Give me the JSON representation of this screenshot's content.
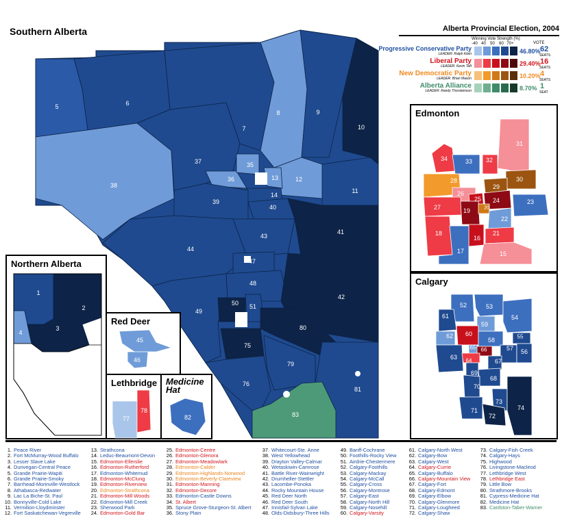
{
  "titles": {
    "southern": "Southern Alberta",
    "northern": "Northern Alberta",
    "edmonton": "Edmonton",
    "calgary": "Calgary",
    "red_deer": "Red Deer",
    "lethbridge": "Lethbridge",
    "medicine_hat": "Medicine Hat"
  },
  "legend": {
    "heading": "Alberta Provincial Election, 2004",
    "strength_label": "Winning Vote Strength (%)",
    "ticks": [
      "-40",
      "40",
      "50",
      "60",
      "70+"
    ],
    "vote_label": "VOTE",
    "parties": [
      {
        "name": "Progressive Conservative Party",
        "leader": "LEADER: Ralph Klein",
        "vote": "46.80%",
        "seats": "62",
        "seats_label": "SEATS",
        "color": "#1f4fa0",
        "shades": [
          "#a9c6ea",
          "#6f9bd8",
          "#3d6fbf",
          "#1f4a8f",
          "#0d2347"
        ]
      },
      {
        "name": "Liberal Party",
        "leader": "LEADER: Kevin Taft",
        "vote": "29.40%",
        "seats": "16",
        "seats_label": "SEATS",
        "color": "#d0151c",
        "shades": [
          "#f58f98",
          "#ee3b45",
          "#c8101d",
          "#8e0a14",
          "#4d0609"
        ]
      },
      {
        "name": "New Democratic Party",
        "leader": "LEADER: Brian Mason",
        "vote": "10.20%",
        "seats": "4",
        "seats_label": "SEATS",
        "color": "#f08a20",
        "shades": [
          "#f7c07a",
          "#f39a2c",
          "#d07918",
          "#9b5510",
          "#5a2f07"
        ]
      },
      {
        "name": "Alberta Alliance",
        "leader": "LEADER: Randy Thorsteinson",
        "vote": "8.70%",
        "seats": "1",
        "seats_label": "SEAT",
        "color": "#3e8c6a",
        "shades": [
          "#a6d2bc",
          "#6fae8e",
          "#3e8c6a",
          "#2a6a4c",
          "#143b29"
        ]
      }
    ]
  },
  "district_numbers": {
    "south": [
      "5",
      "6",
      "8",
      "9",
      "10",
      "37",
      "35",
      "36",
      "13",
      "12",
      "11",
      "38",
      "14",
      "39",
      "40",
      "7",
      "41",
      "43",
      "44",
      "47",
      "48",
      "49",
      "50",
      "51",
      "42",
      "80",
      "75",
      "79",
      "76",
      "81",
      "83"
    ],
    "north": [
      "1",
      "2",
      "3",
      "4"
    ],
    "edmonton": [
      "31",
      "34",
      "33",
      "32",
      "28",
      "29",
      "30",
      "26",
      "25",
      "24",
      "27",
      "19",
      "20",
      "23",
      "22",
      "18",
      "16",
      "21",
      "17",
      "15"
    ],
    "calgary": [
      "52",
      "53",
      "61",
      "59",
      "54",
      "62",
      "60",
      "58",
      "55",
      "65",
      "66",
      "57",
      "56",
      "63",
      "64",
      "67",
      "69",
      "68",
      "70",
      "73",
      "74",
      "71",
      "72"
    ],
    "red_deer": [
      "45",
      "46"
    ],
    "lethbridge": [
      "77",
      "78"
    ],
    "medicine_hat": [
      "82"
    ]
  },
  "districts": {
    "col1": [
      {
        "n": "1.",
        "name": "Peace River",
        "party": "pc"
      },
      {
        "n": "2.",
        "name": "Fort McMurray-Wood Buffalo",
        "party": "pc"
      },
      {
        "n": "3.",
        "name": "Lesser Slave Lake",
        "party": "pc"
      },
      {
        "n": "4.",
        "name": "Dunvegan-Central Peace",
        "party": "pc"
      },
      {
        "n": "5.",
        "name": "Grande Prairie-Wapiti",
        "party": "pc"
      },
      {
        "n": "6.",
        "name": "Grande Prairie-Smoky",
        "party": "pc"
      },
      {
        "n": "7.",
        "name": "Barrhead-Morinville-Westlock",
        "party": "pc"
      },
      {
        "n": "8.",
        "name": "Athabasca-Redwater",
        "party": "pc"
      },
      {
        "n": "9.",
        "name": "Lac La Biche-St. Paul",
        "party": "pc"
      },
      {
        "n": "10.",
        "name": "Bonnyville-Cold Lake",
        "party": "pc"
      },
      {
        "n": "11.",
        "name": "Vermilion-Lloydminster",
        "party": "pc"
      },
      {
        "n": "12.",
        "name": "Fort Saskatchewan-Vegreville",
        "party": "pc"
      }
    ],
    "col2": [
      {
        "n": "13.",
        "name": "Strathcona",
        "party": "pc"
      },
      {
        "n": "14.",
        "name": "Leduc-Beaumont-Devon",
        "party": "pc"
      },
      {
        "n": "15.",
        "name": "Edmonton-Ellerslie",
        "party": "lib"
      },
      {
        "n": "16.",
        "name": "Edmonton-Rutherford",
        "party": "lib"
      },
      {
        "n": "17.",
        "name": "Edmonton-Whitemud",
        "party": "pc"
      },
      {
        "n": "18.",
        "name": "Edmonton-McClung",
        "party": "lib"
      },
      {
        "n": "19.",
        "name": "Edmonton-Riverview",
        "party": "lib"
      },
      {
        "n": "20.",
        "name": "Edmonton-Strathcona",
        "party": "ndp"
      },
      {
        "n": "21.",
        "name": "Edmonton-Mill Woods",
        "party": "lib"
      },
      {
        "n": "22.",
        "name": "Edmonton-Mill Creek",
        "party": "pc"
      },
      {
        "n": "23.",
        "name": "Sherwood Park",
        "party": "pc"
      },
      {
        "n": "24.",
        "name": "Edmonton-Gold Bar",
        "party": "lib"
      }
    ],
    "col3": [
      {
        "n": "25.",
        "name": "Edmonton-Centre",
        "party": "lib"
      },
      {
        "n": "26.",
        "name": "Edmonton-Glenora",
        "party": "lib"
      },
      {
        "n": "27.",
        "name": "Edmonton-Meadowlark",
        "party": "lib"
      },
      {
        "n": "28.",
        "name": "Edmonton-Calder",
        "party": "ndp"
      },
      {
        "n": "29.",
        "name": "Edmonton-Highlands-Norwood",
        "party": "ndp"
      },
      {
        "n": "30.",
        "name": "Edmonton-Beverly-Clareview",
        "party": "ndp"
      },
      {
        "n": "31.",
        "name": "Edmonton-Manning",
        "party": "lib"
      },
      {
        "n": "32.",
        "name": "Edmonton-Decore",
        "party": "lib"
      },
      {
        "n": "33.",
        "name": "Edmonton-Castle Downs",
        "party": "pc"
      },
      {
        "n": "34.",
        "name": "St. Albert",
        "party": "lib"
      },
      {
        "n": "35.",
        "name": "Spruce Grove-Sturgeon-St. Albert",
        "party": "pc"
      },
      {
        "n": "36.",
        "name": "Stony Plain",
        "party": "pc"
      }
    ],
    "col4": [
      {
        "n": "37.",
        "name": "Whitecourt-Ste. Anne",
        "party": "pc"
      },
      {
        "n": "38.",
        "name": "West Yellowhead",
        "party": "pc"
      },
      {
        "n": "39.",
        "name": "Drayton Valley-Calmar",
        "party": "pc"
      },
      {
        "n": "40.",
        "name": "Wetaskiwin-Camrose",
        "party": "pc"
      },
      {
        "n": "41.",
        "name": "Battle River-Wainwright",
        "party": "pc"
      },
      {
        "n": "42.",
        "name": "Drumheller-Stettler",
        "party": "pc"
      },
      {
        "n": "43.",
        "name": "Lacombe-Ponoka",
        "party": "pc"
      },
      {
        "n": "44.",
        "name": "Rocky Mountain House",
        "party": "pc"
      },
      {
        "n": "45.",
        "name": "Red Deer North",
        "party": "pc"
      },
      {
        "n": "46.",
        "name": "Red Deer South",
        "party": "pc"
      },
      {
        "n": "47.",
        "name": "Innisfail-Sylvan Lake",
        "party": "pc"
      },
      {
        "n": "48.",
        "name": "Olds-Didsbury-Three Hills",
        "party": "pc"
      }
    ],
    "col5": [
      {
        "n": "49.",
        "name": "Banff-Cochrane",
        "party": "pc"
      },
      {
        "n": "50.",
        "name": "Foothills-Rocky View",
        "party": "pc"
      },
      {
        "n": "51.",
        "name": "Airdrie-Chestermere",
        "party": "pc"
      },
      {
        "n": "52.",
        "name": "Calgary-Foothills",
        "party": "pc"
      },
      {
        "n": "53.",
        "name": "Calgary-Mackay",
        "party": "pc"
      },
      {
        "n": "54.",
        "name": "Calgary-McCall",
        "party": "pc"
      },
      {
        "n": "55.",
        "name": "Calgary-Cross",
        "party": "pc"
      },
      {
        "n": "56.",
        "name": "Calgary-Montrose",
        "party": "pc"
      },
      {
        "n": "57.",
        "name": "Calgary-East",
        "party": "pc"
      },
      {
        "n": "58.",
        "name": "Calgary-North Hill",
        "party": "pc"
      },
      {
        "n": "59.",
        "name": "Calgary-Nosehill",
        "party": "pc"
      },
      {
        "n": "60.",
        "name": "Calgary-Varsity",
        "party": "lib"
      }
    ],
    "col6": [
      {
        "n": "61.",
        "name": "Calgary-North West",
        "party": "pc"
      },
      {
        "n": "62.",
        "name": "Calgary-Bow",
        "party": "pc"
      },
      {
        "n": "63.",
        "name": "Calgary-West",
        "party": "pc"
      },
      {
        "n": "64.",
        "name": "Calgary-Currie",
        "party": "lib"
      },
      {
        "n": "65.",
        "name": "Calgary-Buffalo",
        "party": "pc"
      },
      {
        "n": "66.",
        "name": "Calgary-Mountain View",
        "party": "lib"
      },
      {
        "n": "67.",
        "name": "Calgary-Fort",
        "party": "pc"
      },
      {
        "n": "68.",
        "name": "Calgary-Edmont",
        "party": "pc"
      },
      {
        "n": "69.",
        "name": "Calgary-Elbow",
        "party": "pc"
      },
      {
        "n": "70.",
        "name": "Calgary-Glenmore",
        "party": "pc"
      },
      {
        "n": "71.",
        "name": "Calgary-Lougheed",
        "party": "pc"
      },
      {
        "n": "72.",
        "name": "Calgary-Shaw",
        "party": "pc"
      }
    ],
    "col7": [
      {
        "n": "73.",
        "name": "Calgary-Fish Creek",
        "party": "pc"
      },
      {
        "n": "74.",
        "name": "Calgary-Hays",
        "party": "pc"
      },
      {
        "n": "75.",
        "name": "Highwood",
        "party": "pc"
      },
      {
        "n": "76.",
        "name": "Livingstone-Macleod",
        "party": "pc"
      },
      {
        "n": "77.",
        "name": "Lethbridge West",
        "party": "pc"
      },
      {
        "n": "78.",
        "name": "Lethbridge East",
        "party": "lib"
      },
      {
        "n": "79.",
        "name": "Little Bow",
        "party": "pc"
      },
      {
        "n": "80.",
        "name": "Strathmore-Brooks",
        "party": "pc"
      },
      {
        "n": "81.",
        "name": "Cypress-Medicine Hat",
        "party": "pc"
      },
      {
        "n": "82.",
        "name": "Medicine Hat",
        "party": "pc"
      },
      {
        "n": "83.",
        "name": "Cardston-Taber-Warner",
        "party": "aa"
      }
    ]
  },
  "party_colors": {
    "pc": "#1f4fa0",
    "lib": "#d0151c",
    "ndp": "#e8841c",
    "aa": "#3e8c6a"
  }
}
